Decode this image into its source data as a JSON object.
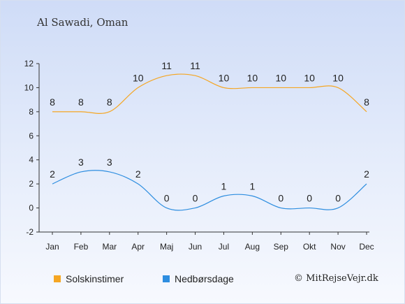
{
  "page_title": "Al Sawadi, Oman",
  "credit": "© MitRejseVejr.dk",
  "chart_data": {
    "type": "line",
    "categories": [
      "Jan",
      "Feb",
      "Mar",
      "Apr",
      "Maj",
      "Jun",
      "Jul",
      "Aug",
      "Sep",
      "Okt",
      "Nov",
      "Dec"
    ],
    "ylim": [
      -2,
      12
    ],
    "yticks": [
      "-2",
      "0",
      "2",
      "4",
      "6",
      "8",
      "10",
      "12"
    ],
    "grid": false,
    "legend_position": "bottom-left",
    "series": [
      {
        "name": "Solskinstimer",
        "color": "#f5a623",
        "values": [
          8,
          8,
          8,
          10,
          11,
          11,
          10,
          10,
          10,
          10,
          10,
          8
        ]
      },
      {
        "name": "Nedbørsdage",
        "color": "#2e8ee0",
        "values": [
          2,
          3,
          3,
          2,
          0,
          0,
          1,
          1,
          0,
          0,
          0,
          2
        ]
      }
    ]
  }
}
